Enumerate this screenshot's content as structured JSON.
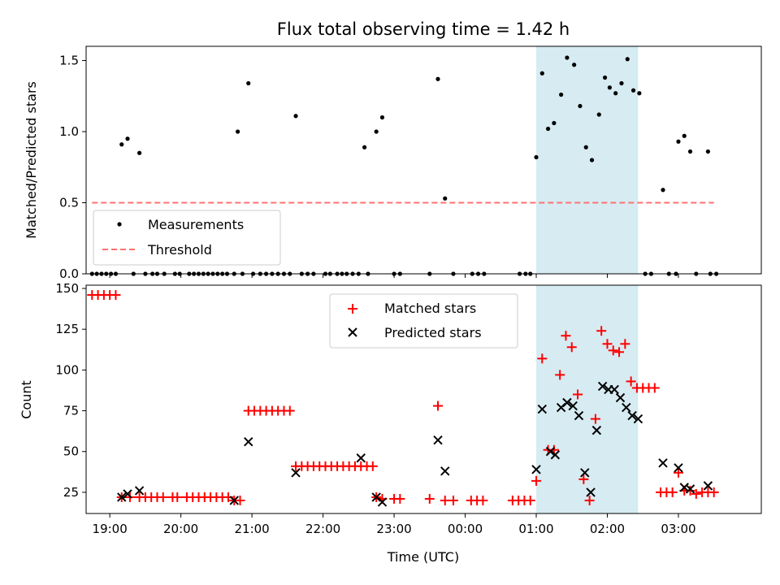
{
  "chart_data": [
    {
      "type": "scatter",
      "title": "Flux total observing time = 1.42 h",
      "xlabel": "",
      "ylabel": "Matched/Predicted stars",
      "xlim": [
        "18:40",
        "04:10"
      ],
      "ylim": [
        0,
        1.6
      ],
      "yticks": [
        0.0,
        0.5,
        1.0,
        1.5
      ],
      "ytick_labels": [
        "0.0",
        "0.5",
        "1.0",
        "1.5"
      ],
      "shaded_interval": {
        "start": "01:00",
        "end": "02:26",
        "color": "#add8e6"
      },
      "threshold": {
        "name": "Threshold",
        "value": 0.5,
        "x_start": "18:45",
        "x_end": "03:30",
        "color": "#ff7070",
        "style": "dashed"
      },
      "legend": {
        "position": "lower-left",
        "entries": [
          "Measurements",
          "Threshold"
        ]
      },
      "series": [
        {
          "name": "Measurements",
          "color": "#000000",
          "marker": "dot",
          "points": [
            [
              "18:45",
              0
            ],
            [
              "18:49",
              0
            ],
            [
              "18:53",
              0
            ],
            [
              "18:57",
              0
            ],
            [
              "19:01",
              0
            ],
            [
              "19:05",
              0
            ],
            [
              "19:10",
              0.91
            ],
            [
              "19:15",
              0.95
            ],
            [
              "19:20",
              0
            ],
            [
              "19:25",
              0.85
            ],
            [
              "19:30",
              0
            ],
            [
              "19:36",
              0
            ],
            [
              "19:40",
              0
            ],
            [
              "19:46",
              0
            ],
            [
              "19:55",
              0
            ],
            [
              "19:59",
              0
            ],
            [
              "20:07",
              0
            ],
            [
              "20:11",
              0
            ],
            [
              "20:15",
              0
            ],
            [
              "20:19",
              0
            ],
            [
              "20:23",
              0
            ],
            [
              "20:27",
              0
            ],
            [
              "20:31",
              0
            ],
            [
              "20:35",
              0
            ],
            [
              "20:39",
              0
            ],
            [
              "20:45",
              0
            ],
            [
              "20:48",
              1.0
            ],
            [
              "20:52",
              0
            ],
            [
              "20:57",
              1.34
            ],
            [
              "21:01",
              0
            ],
            [
              "21:07",
              0
            ],
            [
              "21:12",
              0
            ],
            [
              "21:17",
              0
            ],
            [
              "21:22",
              0
            ],
            [
              "21:27",
              0
            ],
            [
              "21:32",
              0
            ],
            [
              "21:37",
              1.11
            ],
            [
              "21:42",
              0
            ],
            [
              "21:47",
              0
            ],
            [
              "21:52",
              0
            ],
            [
              "22:02",
              0
            ],
            [
              "22:06",
              0
            ],
            [
              "22:12",
              0
            ],
            [
              "22:16",
              0
            ],
            [
              "22:20",
              0
            ],
            [
              "22:25",
              0
            ],
            [
              "22:30",
              0
            ],
            [
              "22:35",
              0.89
            ],
            [
              "22:38",
              0
            ],
            [
              "22:45",
              1.0
            ],
            [
              "22:50",
              1.1
            ],
            [
              "23:00",
              0
            ],
            [
              "23:05",
              0
            ],
            [
              "23:30",
              0
            ],
            [
              "23:37",
              1.37
            ],
            [
              "23:43",
              0.53
            ],
            [
              "23:50",
              0
            ],
            [
              "24:06",
              0
            ],
            [
              "24:11",
              0
            ],
            [
              "24:16",
              0
            ],
            [
              "24:46",
              0
            ],
            [
              "24:51",
              0
            ],
            [
              "24:55",
              0
            ],
            [
              "25:00",
              0.82
            ],
            [
              "25:05",
              1.41
            ],
            [
              "25:10",
              1.02
            ],
            [
              "25:15",
              1.06
            ],
            [
              "25:21",
              1.26
            ],
            [
              "25:26",
              1.52
            ],
            [
              "25:32",
              1.47
            ],
            [
              "25:37",
              1.18
            ],
            [
              "25:42",
              0.89
            ],
            [
              "25:47",
              0.8
            ],
            [
              "25:53",
              1.12
            ],
            [
              "25:58",
              1.38
            ],
            [
              "26:02",
              1.31
            ],
            [
              "26:07",
              1.27
            ],
            [
              "26:12",
              1.34
            ],
            [
              "26:17",
              1.51
            ],
            [
              "26:22",
              1.29
            ],
            [
              "26:27",
              1.27
            ],
            [
              "26:32",
              0
            ],
            [
              "26:37",
              0
            ],
            [
              "26:47",
              0.59
            ],
            [
              "26:52",
              0
            ],
            [
              "26:58",
              0
            ],
            [
              "27:00",
              0.93
            ],
            [
              "27:05",
              0.97
            ],
            [
              "27:10",
              0.86
            ],
            [
              "27:15",
              0
            ],
            [
              "27:25",
              0.86
            ],
            [
              "27:27",
              0
            ],
            [
              "27:32",
              0
            ]
          ]
        }
      ]
    },
    {
      "type": "scatter",
      "title": "",
      "xlabel": "Time (UTC)",
      "ylabel": "Count",
      "xlim": [
        "18:40",
        "04:10"
      ],
      "ylim": [
        12,
        152
      ],
      "yticks": [
        25,
        50,
        75,
        100,
        125,
        150
      ],
      "ytick_labels": [
        "25",
        "50",
        "75",
        "100",
        "125",
        "150"
      ],
      "xticks": [
        "19:00",
        "20:00",
        "21:00",
        "22:00",
        "23:00",
        "00:00",
        "01:00",
        "02:00",
        "03:00"
      ],
      "shaded_interval": {
        "start": "01:00",
        "end": "02:26",
        "color": "#add8e6"
      },
      "legend": {
        "position": "upper-center",
        "entries": [
          "Matched stars",
          "Predicted stars"
        ]
      },
      "series": [
        {
          "name": "Matched stars",
          "color": "#ff0000",
          "marker": "plus",
          "points": [
            [
              "18:45",
              146
            ],
            [
              "18:50",
              146
            ],
            [
              "18:55",
              146
            ],
            [
              "19:00",
              146
            ],
            [
              "19:05",
              146
            ],
            [
              "19:10",
              22
            ],
            [
              "19:17",
              22
            ],
            [
              "19:25",
              22
            ],
            [
              "19:30",
              22
            ],
            [
              "19:35",
              22
            ],
            [
              "19:40",
              22
            ],
            [
              "19:45",
              22
            ],
            [
              "19:53",
              22
            ],
            [
              "19:57",
              22
            ],
            [
              "20:05",
              22
            ],
            [
              "20:10",
              22
            ],
            [
              "20:15",
              22
            ],
            [
              "20:20",
              22
            ],
            [
              "20:25",
              22
            ],
            [
              "20:30",
              22
            ],
            [
              "20:35",
              22
            ],
            [
              "20:40",
              22
            ],
            [
              "20:45",
              20
            ],
            [
              "20:50",
              20
            ],
            [
              "20:57",
              75
            ],
            [
              "21:02",
              75
            ],
            [
              "21:07",
              75
            ],
            [
              "21:12",
              75
            ],
            [
              "21:17",
              75
            ],
            [
              "21:22",
              75
            ],
            [
              "21:27",
              75
            ],
            [
              "21:32",
              75
            ],
            [
              "21:37",
              41
            ],
            [
              "21:42",
              41
            ],
            [
              "21:47",
              41
            ],
            [
              "21:52",
              41
            ],
            [
              "21:57",
              41
            ],
            [
              "22:02",
              41
            ],
            [
              "22:07",
              41
            ],
            [
              "22:12",
              41
            ],
            [
              "22:17",
              41
            ],
            [
              "22:22",
              41
            ],
            [
              "22:27",
              41
            ],
            [
              "22:32",
              41
            ],
            [
              "22:37",
              41
            ],
            [
              "22:42",
              41
            ],
            [
              "22:45",
              22
            ],
            [
              "22:50",
              21
            ],
            [
              "23:00",
              21
            ],
            [
              "23:05",
              21
            ],
            [
              "23:30",
              21
            ],
            [
              "23:37",
              78
            ],
            [
              "23:43",
              20
            ],
            [
              "23:50",
              20
            ],
            [
              "24:05",
              20
            ],
            [
              "24:10",
              20
            ],
            [
              "24:15",
              20
            ],
            [
              "24:40",
              20
            ],
            [
              "24:45",
              20
            ],
            [
              "24:50",
              20
            ],
            [
              "24:55",
              20
            ],
            [
              "25:00",
              32
            ],
            [
              "25:05",
              107
            ],
            [
              "25:10",
              51
            ],
            [
              "25:15",
              51
            ],
            [
              "25:20",
              97
            ],
            [
              "25:25",
              121
            ],
            [
              "25:30",
              114
            ],
            [
              "25:35",
              85
            ],
            [
              "25:40",
              33
            ],
            [
              "25:45",
              20
            ],
            [
              "25:50",
              70
            ],
            [
              "25:55",
              124
            ],
            [
              "26:00",
              116
            ],
            [
              "26:05",
              112
            ],
            [
              "26:10",
              111
            ],
            [
              "26:15",
              116
            ],
            [
              "26:20",
              93
            ],
            [
              "26:25",
              89
            ],
            [
              "26:30",
              89
            ],
            [
              "26:35",
              89
            ],
            [
              "26:40",
              89
            ],
            [
              "26:45",
              25
            ],
            [
              "26:50",
              25
            ],
            [
              "26:55",
              25
            ],
            [
              "27:00",
              37
            ],
            [
              "27:05",
              26
            ],
            [
              "27:10",
              26
            ],
            [
              "27:15",
              24
            ],
            [
              "27:20",
              25
            ],
            [
              "27:25",
              25
            ],
            [
              "27:30",
              25
            ]
          ]
        },
        {
          "name": "Predicted stars",
          "color": "#000000",
          "marker": "x",
          "points": [
            [
              "19:10",
              22
            ],
            [
              "19:15",
              24
            ],
            [
              "19:25",
              26
            ],
            [
              "20:45",
              20
            ],
            [
              "20:57",
              56
            ],
            [
              "21:37",
              37
            ],
            [
              "22:32",
              46
            ],
            [
              "22:45",
              22
            ],
            [
              "22:50",
              19
            ],
            [
              "23:37",
              57
            ],
            [
              "23:43",
              38
            ],
            [
              "25:00",
              39
            ],
            [
              "25:05",
              76
            ],
            [
              "25:12",
              50
            ],
            [
              "25:16",
              48
            ],
            [
              "25:21",
              77
            ],
            [
              "25:26",
              80
            ],
            [
              "25:31",
              78
            ],
            [
              "25:36",
              72
            ],
            [
              "25:41",
              37
            ],
            [
              "25:46",
              25
            ],
            [
              "25:51",
              63
            ],
            [
              "25:56",
              90
            ],
            [
              "26:01",
              88
            ],
            [
              "26:06",
              88
            ],
            [
              "26:11",
              83
            ],
            [
              "26:16",
              77
            ],
            [
              "26:21",
              72
            ],
            [
              "26:26",
              70
            ],
            [
              "26:47",
              43
            ],
            [
              "27:00",
              40
            ],
            [
              "27:05",
              28
            ],
            [
              "27:10",
              27
            ],
            [
              "27:25",
              29
            ]
          ]
        }
      ]
    }
  ]
}
